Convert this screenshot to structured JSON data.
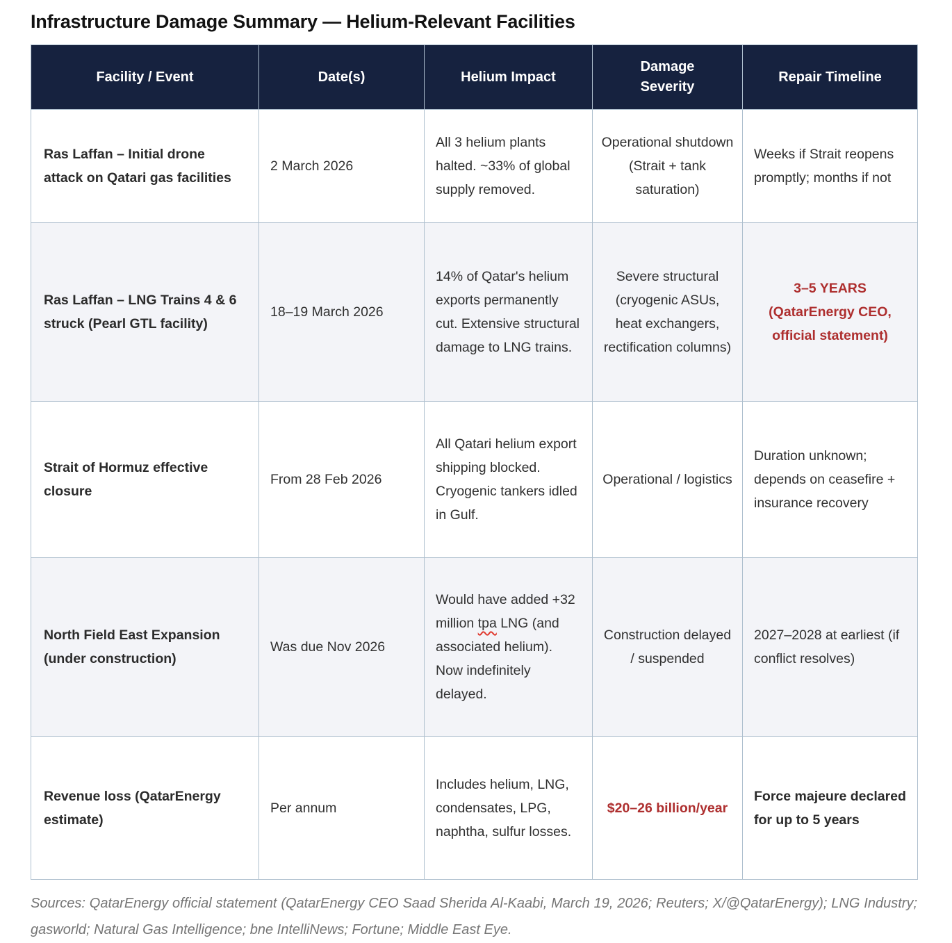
{
  "page": {
    "title": "Infrastructure Damage Summary — Helium-Relevant Facilities"
  },
  "colors": {
    "header_bg": "#16223f",
    "header_text": "#ffffff",
    "accent_red": "#ae2f2f",
    "row_alt_bg": "#f3f4f8",
    "border": "#aebfce",
    "body_text": "#303030",
    "sources_text": "#757575"
  },
  "table": {
    "columns": [
      "Facility / Event",
      "Date(s)",
      "Helium Impact",
      "Damage Severity",
      "Repair Timeline"
    ],
    "rows": [
      {
        "facility": "Ras Laffan – Initial drone attack on Qatari gas facilities",
        "dates": "2 March 2026",
        "impact": "All 3 helium plants halted. ~33% of global supply removed.",
        "severity": "Operational shutdown (Strait + tank saturation)",
        "timeline": "Weeks if Strait reopens promptly; months if not"
      },
      {
        "facility": "Ras Laffan – LNG Trains 4 & 6 struck (Pearl GTL facility)",
        "dates": "18–19 March 2026",
        "impact": "14% of Qatar's helium exports permanently cut. Extensive structural damage to LNG trains.",
        "severity": "Severe structural (cryogenic ASUs, heat exchangers, rectification columns)",
        "timeline": "3–5 YEARS (QatarEnergy CEO, official statement)"
      },
      {
        "facility": "Strait of Hormuz effective closure",
        "dates": "From 28 Feb 2026",
        "impact": "All Qatari helium export shipping blocked. Cryogenic tankers idled in Gulf.",
        "severity": "Operational / logistics",
        "timeline": "Duration unknown; depends on ceasefire + insurance recovery"
      },
      {
        "facility": "North Field East Expansion (under construction)",
        "dates": "Was due Nov 2026",
        "impact_pre": "Would have added +32 million ",
        "impact_flagged": "tpa",
        "impact_post": " LNG (and associated helium). Now indefinitely delayed.",
        "severity": "Construction delayed / suspended",
        "timeline": "2027–2028 at earliest (if conflict resolves)"
      },
      {
        "facility": "Revenue loss (QatarEnergy estimate)",
        "dates": "Per annum",
        "impact": "Includes helium, LNG, condensates, LPG, naphtha, sulfur losses.",
        "severity": "$20–26 billion/year",
        "timeline": "Force majeure declared for up to 5 years"
      }
    ]
  },
  "footer": {
    "sources": "Sources: QatarEnergy official statement (QatarEnergy CEO Saad Sherida Al-Kaabi, March 19, 2026; Reuters; X/@QatarEnergy); LNG Industry; gasworld; Natural Gas Intelligence; bne IntelliNews; Fortune; Middle East Eye."
  }
}
